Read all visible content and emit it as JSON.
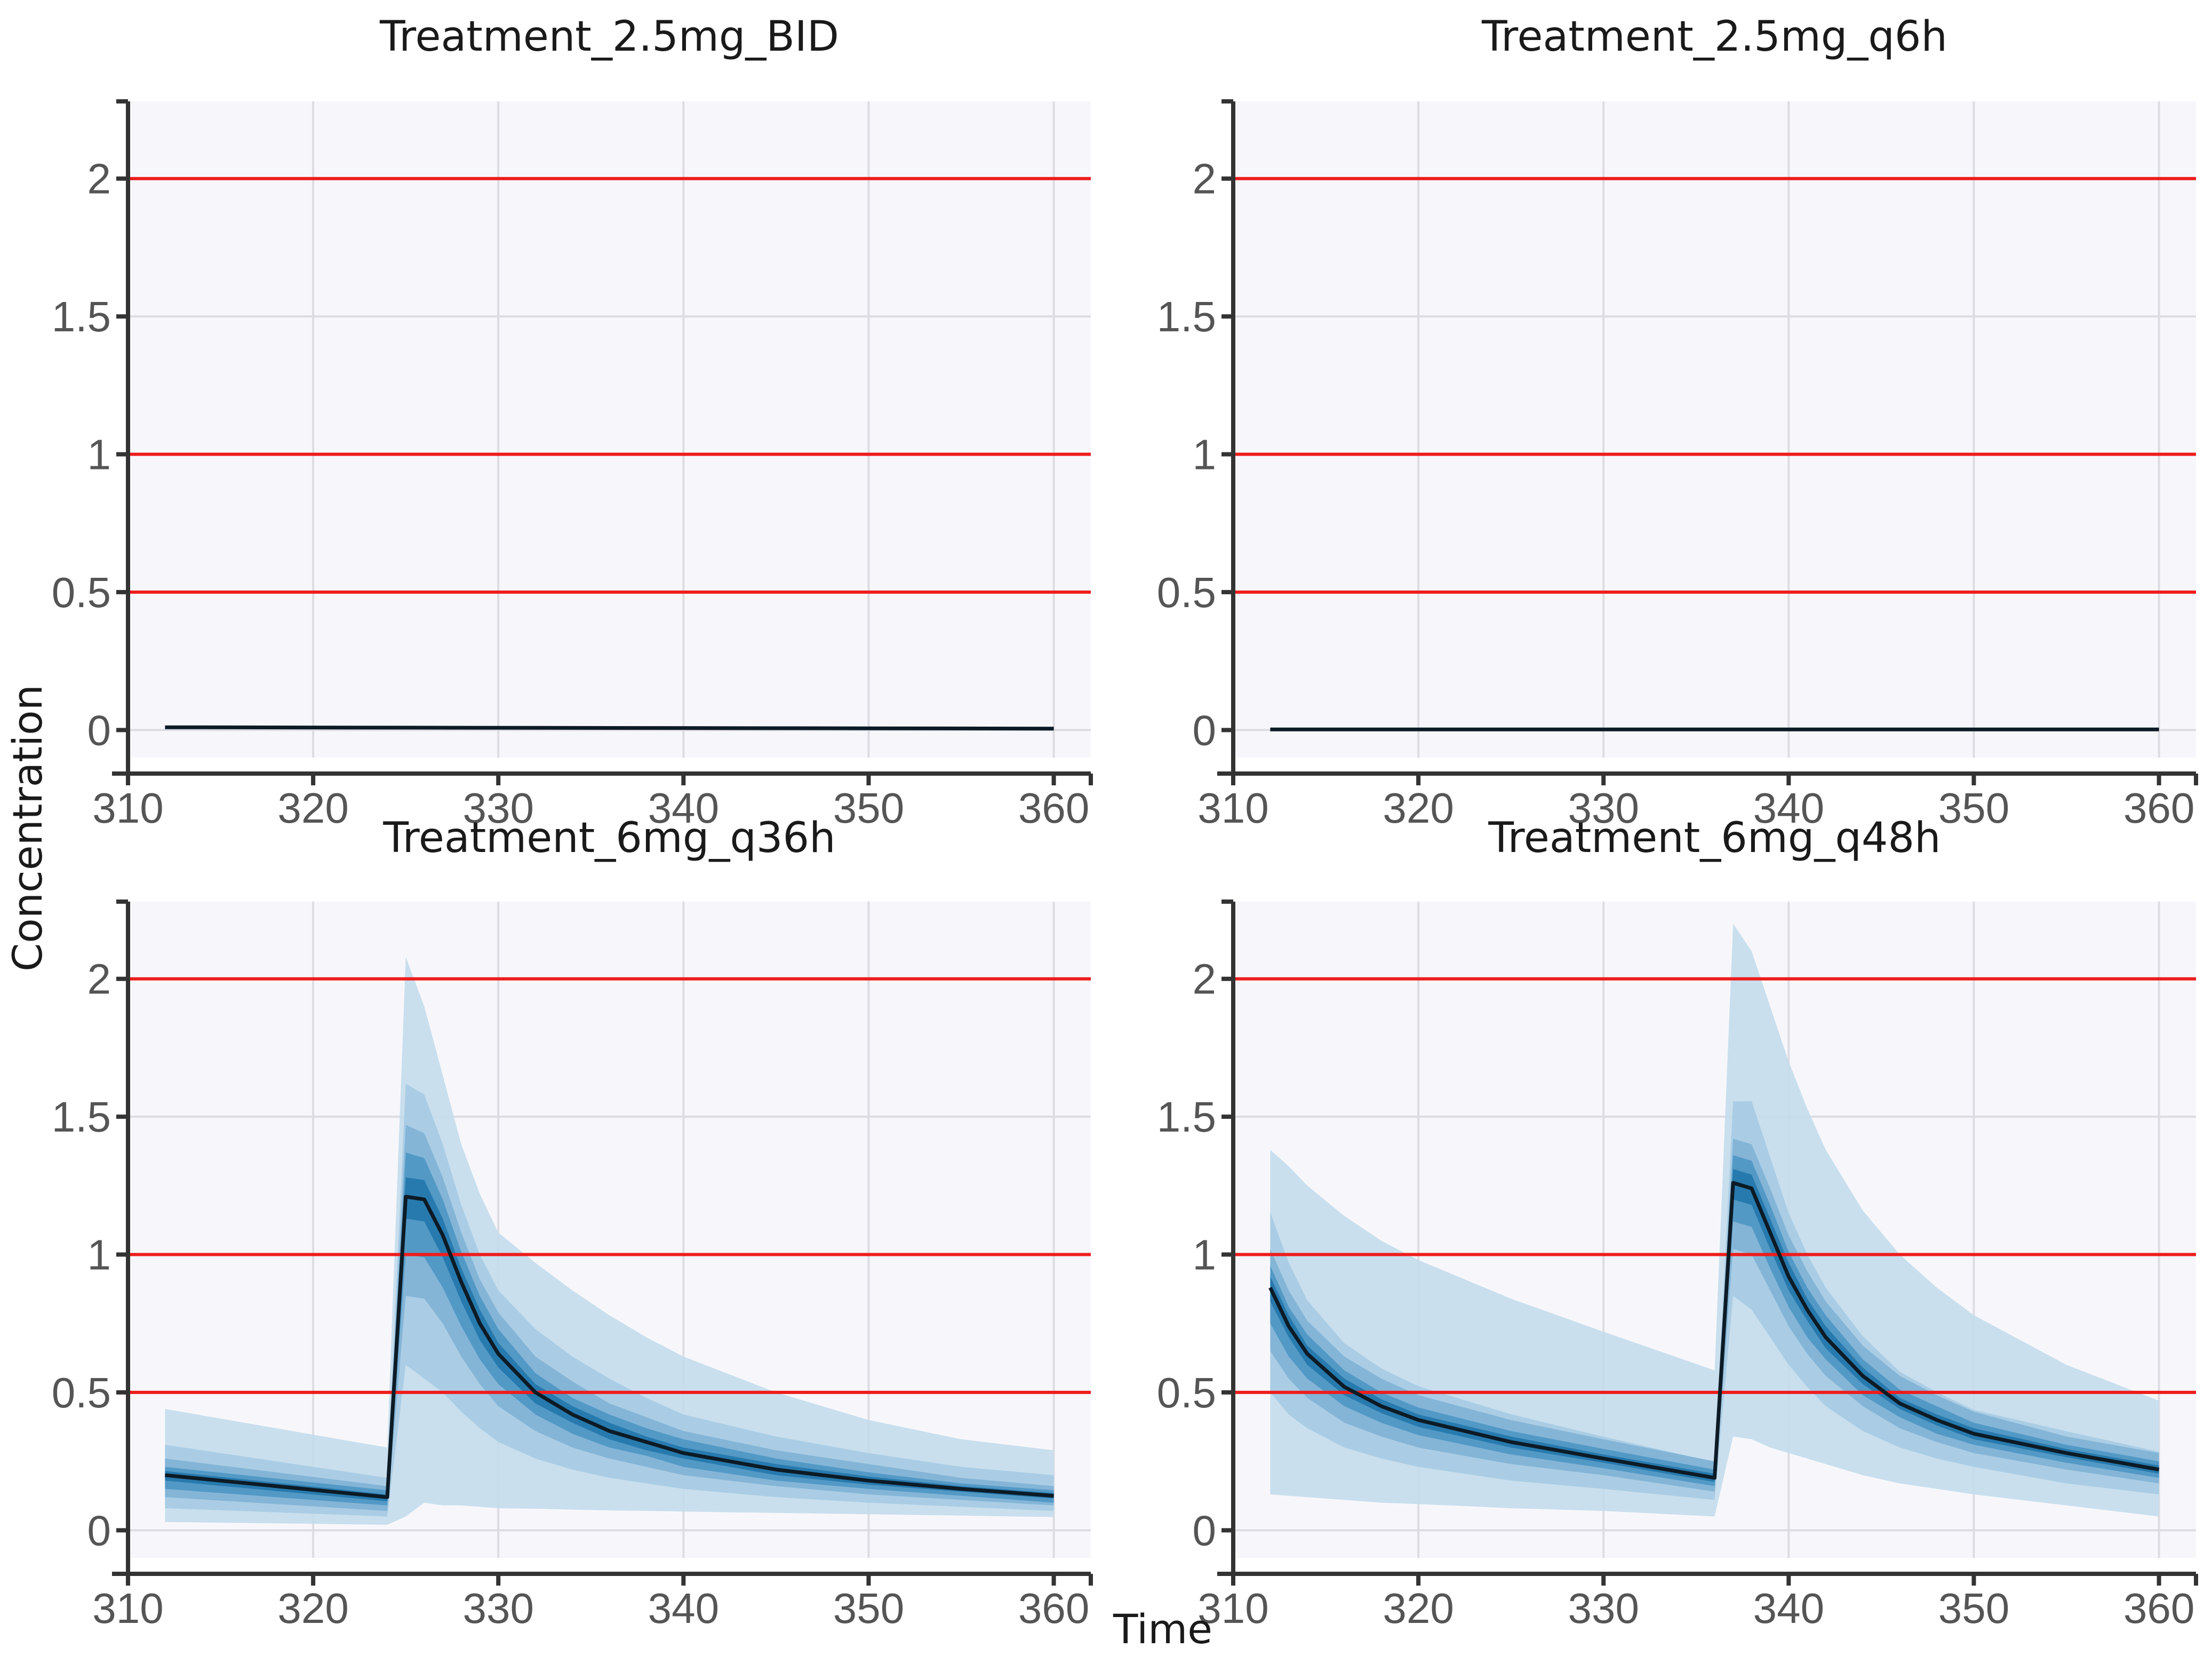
{
  "chart_data": {
    "type": "area",
    "xlabel": "Time",
    "ylabel": "Concentration",
    "xlim": [
      310,
      362
    ],
    "ylim": [
      -0.1,
      2.28
    ],
    "xticks": [
      310,
      320,
      330,
      340,
      350,
      360
    ],
    "xtick_labels": [
      "310",
      "320",
      "330",
      "340",
      "350",
      "360"
    ],
    "yticks": [
      0,
      0.5,
      1,
      1.5,
      2
    ],
    "ytick_labels": [
      "0",
      "0.5",
      "1",
      "1.5",
      "2"
    ],
    "reference_lines": [
      0.5,
      1,
      2
    ],
    "band_colors": [
      "#c3dcec",
      "#a6cbe3",
      "#7fb3d5",
      "#4e96c4",
      "#2277ab"
    ],
    "median_color": "#0c1b26",
    "reference_color": "#ee1c1c",
    "panels": [
      {
        "title": "Treatment_2.5mg_BID",
        "x": [
          312,
          360
        ],
        "median": [
          0.01,
          0.005
        ],
        "bands": []
      },
      {
        "title": "Treatment_2.5mg_q6h",
        "x": [
          312,
          360
        ],
        "median": [
          0.002,
          0.002
        ],
        "bands": []
      },
      {
        "title": "Treatment_6mg_q36h",
        "x": [
          312,
          324,
          325,
          326,
          327,
          328,
          329,
          330,
          332,
          334,
          336,
          338,
          340,
          345,
          350,
          355,
          360
        ],
        "median": [
          0.2,
          0.12,
          1.21,
          1.2,
          1.07,
          0.9,
          0.75,
          0.64,
          0.5,
          0.42,
          0.36,
          0.32,
          0.28,
          0.22,
          0.18,
          0.15,
          0.125
        ],
        "bands": [
          {
            "lower": [
              0.03,
              0.02,
              0.05,
              0.1,
              0.09,
              0.09,
              0.085,
              0.08,
              0.078,
              0.075,
              0.072,
              0.07,
              0.068,
              0.063,
              0.058,
              0.053,
              0.048
            ],
            "upper": [
              0.44,
              0.3,
              2.08,
              1.9,
              1.65,
              1.4,
              1.22,
              1.08,
              0.97,
              0.87,
              0.78,
              0.7,
              0.63,
              0.5,
              0.4,
              0.33,
              0.29
            ]
          },
          {
            "lower": [
              0.08,
              0.05,
              0.6,
              0.55,
              0.5,
              0.43,
              0.37,
              0.32,
              0.26,
              0.22,
              0.19,
              0.17,
              0.15,
              0.12,
              0.1,
              0.085,
              0.07
            ],
            "upper": [
              0.31,
              0.19,
              1.62,
              1.58,
              1.4,
              1.18,
              1.0,
              0.87,
              0.73,
              0.63,
              0.55,
              0.48,
              0.42,
              0.34,
              0.28,
              0.23,
              0.2
            ]
          },
          {
            "lower": [
              0.12,
              0.07,
              0.85,
              0.84,
              0.75,
              0.63,
              0.53,
              0.45,
              0.36,
              0.3,
              0.26,
              0.23,
              0.2,
              0.16,
              0.13,
              0.11,
              0.09
            ],
            "upper": [
              0.26,
              0.16,
              1.47,
              1.44,
              1.28,
              1.08,
              0.91,
              0.79,
              0.63,
              0.54,
              0.46,
              0.41,
              0.36,
              0.29,
              0.24,
              0.19,
              0.16
            ]
          },
          {
            "lower": [
              0.15,
              0.09,
              1.0,
              0.99,
              0.88,
              0.74,
              0.62,
              0.53,
              0.42,
              0.35,
              0.3,
              0.27,
              0.23,
              0.18,
              0.15,
              0.125,
              0.1
            ],
            "upper": [
              0.23,
              0.145,
              1.37,
              1.35,
              1.2,
              1.01,
              0.85,
              0.73,
              0.57,
              0.48,
              0.42,
              0.37,
              0.33,
              0.26,
              0.21,
              0.17,
              0.145
            ]
          },
          {
            "lower": [
              0.18,
              0.105,
              1.13,
              1.12,
              0.99,
              0.83,
              0.69,
              0.59,
              0.46,
              0.39,
              0.33,
              0.29,
              0.26,
              0.2,
              0.165,
              0.14,
              0.115
            ],
            "upper": [
              0.215,
              0.13,
              1.28,
              1.27,
              1.13,
              0.95,
              0.8,
              0.68,
              0.53,
              0.45,
              0.39,
              0.34,
              0.3,
              0.24,
              0.195,
              0.16,
              0.135
            ]
          }
        ]
      },
      {
        "title": "Treatment_6mg_q48h",
        "x": [
          312,
          313,
          314,
          316,
          318,
          320,
          325,
          330,
          336,
          337,
          338,
          339,
          340,
          341,
          342,
          344,
          346,
          348,
          350,
          355,
          360
        ],
        "median": [
          0.88,
          0.74,
          0.64,
          0.52,
          0.45,
          0.4,
          0.32,
          0.26,
          0.19,
          1.26,
          1.24,
          1.08,
          0.92,
          0.8,
          0.7,
          0.56,
          0.46,
          0.4,
          0.35,
          0.28,
          0.22
        ],
        "bands": [
          {
            "lower": [
              0.13,
              0.125,
              0.12,
              0.11,
              0.1,
              0.095,
              0.08,
              0.07,
              0.05,
              0.34,
              0.33,
              0.3,
              0.28,
              0.26,
              0.24,
              0.2,
              0.17,
              0.15,
              0.13,
              0.09,
              0.05
            ],
            "upper": [
              1.38,
              1.32,
              1.25,
              1.14,
              1.05,
              0.98,
              0.84,
              0.72,
              0.58,
              2.2,
              2.1,
              1.9,
              1.7,
              1.53,
              1.38,
              1.16,
              1.0,
              0.88,
              0.78,
              0.6,
              0.47
            ]
          },
          {
            "lower": [
              0.5,
              0.42,
              0.37,
              0.3,
              0.26,
              0.23,
              0.18,
              0.15,
              0.11,
              0.85,
              0.8,
              0.7,
              0.6,
              0.52,
              0.45,
              0.36,
              0.3,
              0.26,
              0.23,
              0.17,
              0.13
            ]
          },
          {
            "lower": [
              0.65,
              0.55,
              0.48,
              0.39,
              0.34,
              0.3,
              0.24,
              0.2,
              0.14,
              1.02,
              1.0,
              0.87,
              0.74,
              0.64,
              0.56,
              0.45,
              0.37,
              0.32,
              0.28,
              0.22,
              0.17
            ],
            "upper": [
              1.02,
              0.87,
              0.76,
              0.63,
              0.55,
              0.49,
              0.4,
              0.33,
              0.25,
              1.42,
              1.4,
              1.24,
              1.07,
              0.94,
              0.83,
              0.67,
              0.56,
              0.49,
              0.43,
              0.34,
              0.28
            ]
          },
          {
            "lower": [
              0.75,
              0.63,
              0.55,
              0.45,
              0.39,
              0.345,
              0.275,
              0.225,
              0.16,
              1.12,
              1.1,
              0.95,
              0.81,
              0.7,
              0.62,
              0.49,
              0.41,
              0.35,
              0.31,
              0.245,
              0.19
            ],
            "upper": [
              0.96,
              0.81,
              0.71,
              0.58,
              0.5,
              0.445,
              0.36,
              0.295,
              0.22,
              1.36,
              1.34,
              1.18,
              1.01,
              0.88,
              0.78,
              0.62,
              0.51,
              0.45,
              0.39,
              0.31,
              0.25
            ]
          },
          {
            "lower": [
              0.83,
              0.7,
              0.6,
              0.49,
              0.425,
              0.375,
              0.3,
              0.245,
              0.175,
              1.2,
              1.18,
              1.02,
              0.87,
              0.76,
              0.66,
              0.53,
              0.44,
              0.38,
              0.33,
              0.265,
              0.205
            ],
            "upper": [
              0.92,
              0.78,
              0.67,
              0.55,
              0.475,
              0.42,
              0.34,
              0.275,
              0.205,
              1.31,
              1.29,
              1.13,
              0.97,
              0.84,
              0.74,
              0.59,
              0.48,
              0.42,
              0.37,
              0.295,
              0.235
            ]
          }
        ]
      }
    ]
  }
}
